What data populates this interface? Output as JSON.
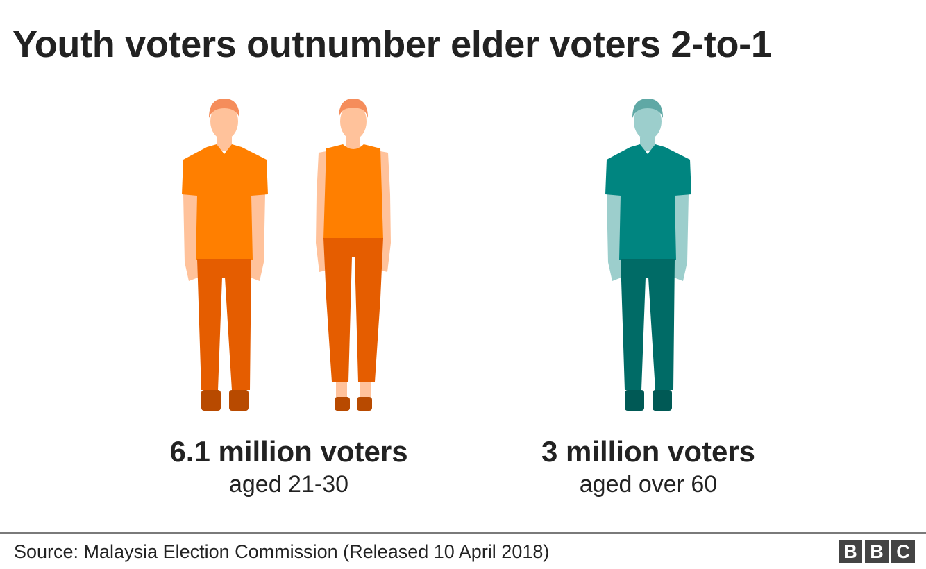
{
  "title": "Youth voters outnumber elder voters 2-to-1",
  "chart_data": {
    "type": "pictogram",
    "title": "Youth voters outnumber elder voters 2-to-1",
    "categories": [
      "aged 21-30",
      "aged over 60"
    ],
    "values": [
      6.1,
      3
    ],
    "unit": "million voters",
    "groups": [
      {
        "value_label": "6.1 million voters",
        "label": "aged 21-30",
        "value": 6.1,
        "icons": 2,
        "color": "#FF7F00",
        "dark_color": "#E55D00"
      },
      {
        "value_label": "3 million voters",
        "label": "aged over 60",
        "value": 3,
        "icons": 1,
        "color": "#008580",
        "dark_color": "#006B66"
      }
    ]
  },
  "colors": {
    "youth_shirt": "#FF7F00",
    "youth_pants": "#E55D00",
    "youth_skin": "#FFC29B",
    "youth_hair": "#F58D5B",
    "youth_shoes": "#B84A00",
    "elder_shirt": "#008580",
    "elder_pants": "#006B66",
    "elder_skin": "#9CCECC",
    "elder_hair": "#5FA8A5",
    "elder_shoes": "#005955"
  },
  "icons": [
    "man-figure-icon",
    "woman-figure-icon",
    "man-figure-icon"
  ],
  "footer": {
    "source": "Source: Malaysia Election Commission (Released 10 April 2018)",
    "logo_letters": [
      "B",
      "B",
      "C"
    ]
  }
}
